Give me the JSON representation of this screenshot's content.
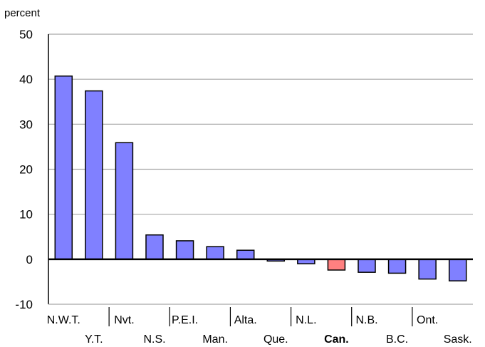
{
  "chart_data": {
    "type": "bar",
    "ylabel": "percent",
    "ylim": [
      -10,
      50
    ],
    "yticks": [
      -10,
      0,
      10,
      20,
      30,
      40,
      50
    ],
    "grid": true,
    "legend": "none",
    "categories": [
      "N.W.T.",
      "Y.T.",
      "Nvt.",
      "N.S.",
      "P.E.I.",
      "Man.",
      "Alta.",
      "Que.",
      "N.L.",
      "Can.",
      "N.B.",
      "B.C.",
      "Ont.",
      "Sask."
    ],
    "values": [
      40.7,
      37.4,
      25.9,
      5.4,
      4.1,
      2.8,
      2.0,
      -0.4,
      -1.0,
      -2.4,
      -2.9,
      -3.1,
      -4.4,
      -4.8
    ],
    "highlight_category": "Can.",
    "colors": {
      "bar": "#8080ff",
      "highlight": "#ff8080",
      "grid": "#a6a6a6",
      "axis": "#000000"
    }
  }
}
